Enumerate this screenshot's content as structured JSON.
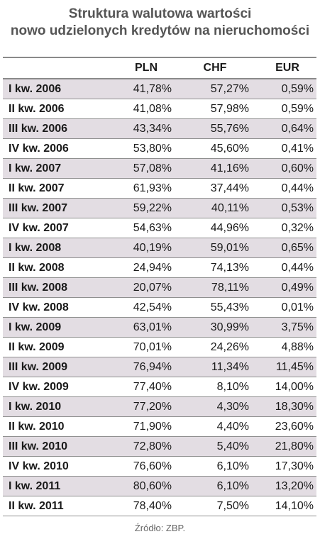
{
  "title_line1": "Struktura walutowa wartości",
  "title_line2": "nowo udzielonych kredytów na nieruchomości",
  "source": "Źródło: ZBP.",
  "colors": {
    "shade": "#e3dde3",
    "title": "#555555",
    "rule": "#8a8a8a"
  },
  "chart_data": {
    "type": "table",
    "title": "Struktura walutowa wartości nowo udzielonych kredytów na nieruchomości",
    "columns": [
      "",
      "PLN",
      "CHF",
      "EUR"
    ],
    "rows": [
      [
        "I kw. 2006",
        "41,78%",
        "57,27%",
        "0,59%"
      ],
      [
        "II kw. 2006",
        "41,08%",
        "57,98%",
        "0,59%"
      ],
      [
        "III kw. 2006",
        "43,34%",
        "55,76%",
        "0,64%"
      ],
      [
        "IV kw. 2006",
        "53,80%",
        "45,60%",
        "0,41%"
      ],
      [
        "I kw. 2007",
        "57,08%",
        "41,16%",
        "0,60%"
      ],
      [
        "II kw. 2007",
        "61,93%",
        "37,44%",
        "0,44%"
      ],
      [
        "III kw. 2007",
        "59,22%",
        "40,11%",
        "0,53%"
      ],
      [
        "IV kw. 2007",
        "54,63%",
        "44,96%",
        "0,32%"
      ],
      [
        "I kw. 2008",
        "40,19%",
        "59,01%",
        "0,65%"
      ],
      [
        "II kw. 2008",
        "24,94%",
        "74,13%",
        "0,44%"
      ],
      [
        "III kw. 2008",
        "20,07%",
        "78,11%",
        "0,49%"
      ],
      [
        "IV kw. 2008",
        "42,54%",
        "55,43%",
        "0,01%"
      ],
      [
        "I kw. 2009",
        "63,01%",
        "30,99%",
        "3,75%"
      ],
      [
        "II kw. 2009",
        "70,01%",
        "24,26%",
        "4,88%"
      ],
      [
        "III kw. 2009",
        "76,94%",
        "11,34%",
        "11,45%"
      ],
      [
        "IV kw. 2009",
        "77,40%",
        "8,10%",
        "14,00%"
      ],
      [
        "I kw. 2010",
        "77,20%",
        "4,30%",
        "18,30%"
      ],
      [
        "II kw. 2010",
        "71,90%",
        "4,40%",
        "23,60%"
      ],
      [
        "III kw. 2010",
        "72,80%",
        "5,40%",
        "21,80%"
      ],
      [
        "IV kw. 2010",
        "76,60%",
        "6,10%",
        "17,30%"
      ],
      [
        "I kw. 2011",
        "80,60%",
        "6,10%",
        "13,20%"
      ],
      [
        "II kw. 2011",
        "78,40%",
        "7,50%",
        "14,10%"
      ]
    ]
  }
}
